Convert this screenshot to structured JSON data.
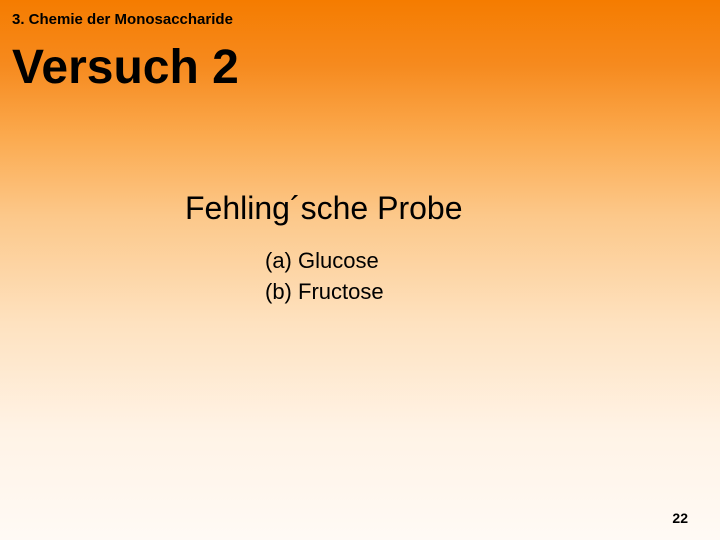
{
  "chapter": "3. Chemie der Monosaccharide",
  "title": "Versuch 2",
  "subtitle": "Fehling´sche Probe",
  "items": {
    "a": "(a) Glucose",
    "b": "(b) Fructose"
  },
  "pageNumber": "22",
  "styling": {
    "background_gradient_stops": [
      "#f57c00",
      "#f68a1e",
      "#fba94d",
      "#fcc88a",
      "#fee2c0",
      "#fff3e6",
      "#fffaf5"
    ],
    "text_color": "#000000",
    "font_family": "Arial",
    "chapter_fontsize": 15,
    "title_fontsize": 48,
    "subtitle_fontsize": 32,
    "item_fontsize": 22,
    "page_number_fontsize": 14
  }
}
